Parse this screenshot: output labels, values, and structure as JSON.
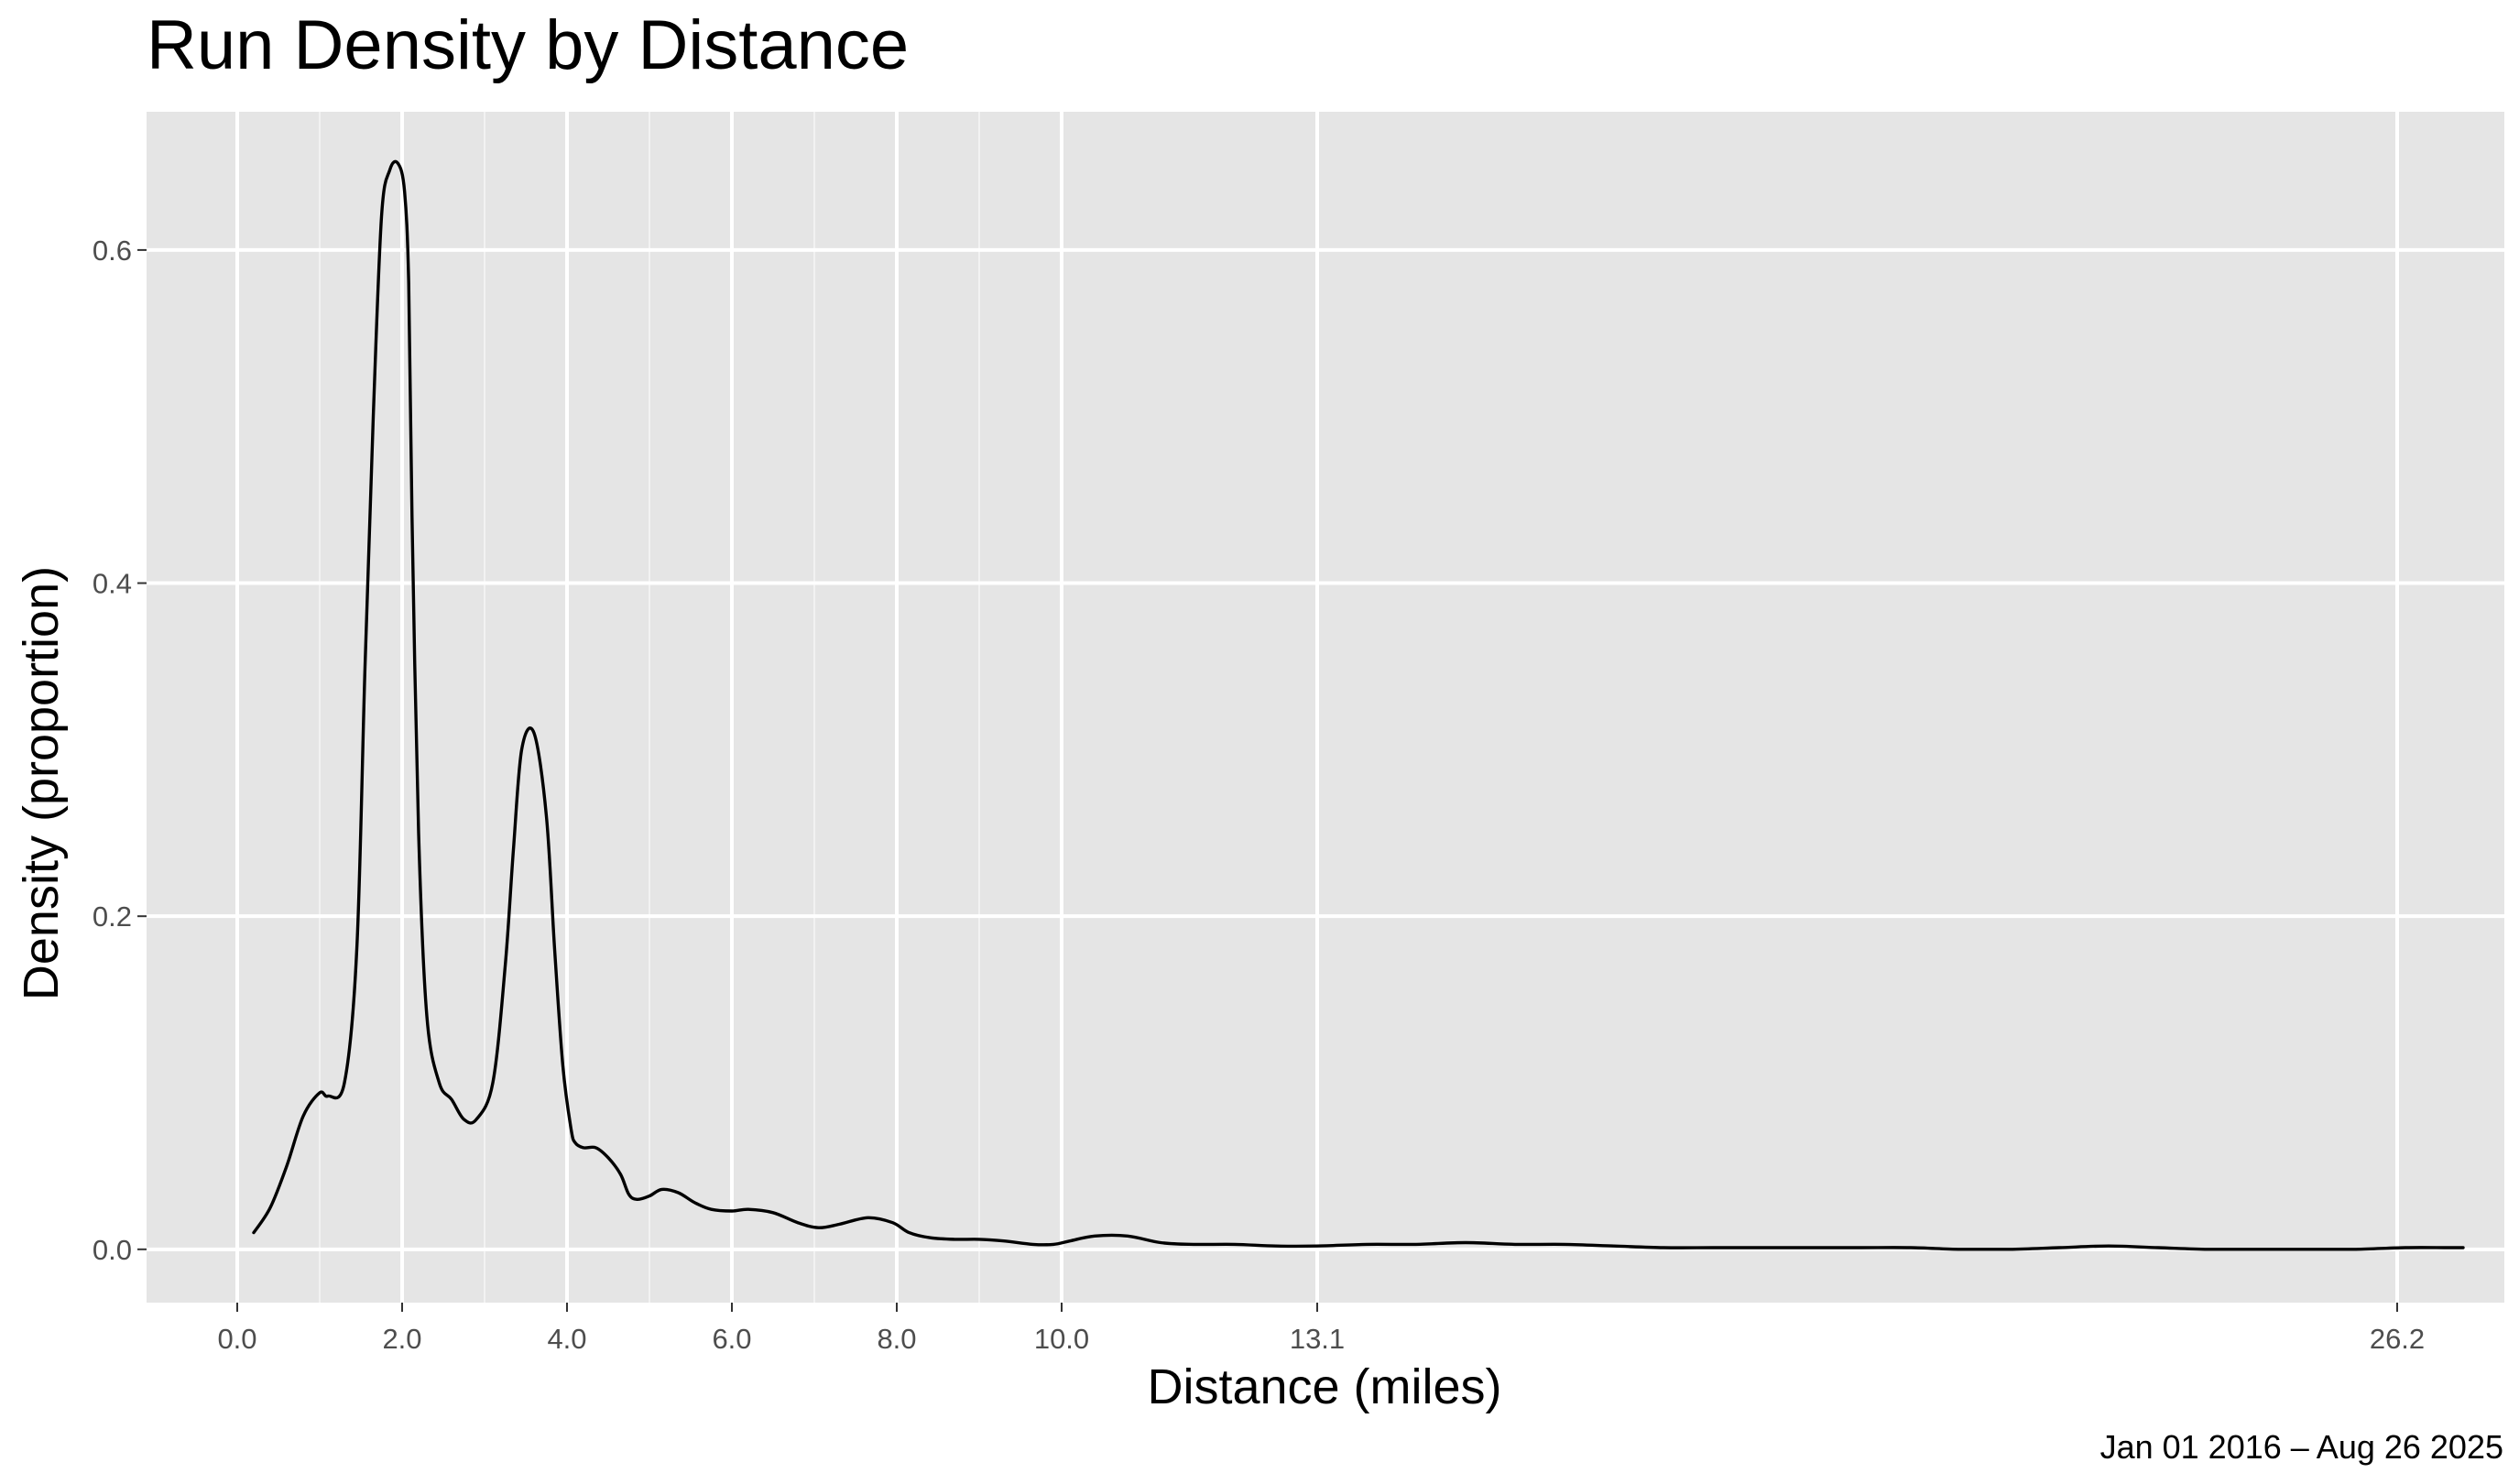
{
  "colors": {
    "panel_background": "#e5e5e5",
    "grid_major": "#ffffff",
    "grid_minor": "#f2f2f2",
    "line": "#000000",
    "tick_text": "#4d4d4d"
  },
  "chart_data": {
    "type": "line",
    "title": "Run Density by Distance",
    "xlabel": "Distance (miles)",
    "ylabel": "Density (proportion)",
    "caption": "Jan 01 2016 – Aug 26 2025",
    "xlim": [
      -1.1,
      27.5
    ],
    "ylim": [
      -0.032,
      0.683
    ],
    "grid": true,
    "x_ticks": [
      0,
      2,
      4,
      6,
      8,
      10,
      13.1,
      26.2
    ],
    "x_tick_labels": [
      "0.0",
      "2.0",
      "4.0",
      "6.0",
      "8.0",
      "10.0",
      "13.1",
      "26.2"
    ],
    "x_minor_grid": [
      1,
      3,
      5,
      7,
      9
    ],
    "y_ticks": [
      0,
      0.2,
      0.4,
      0.6
    ],
    "y_tick_labels": [
      "0.0",
      "0.2",
      "0.4",
      "0.6"
    ],
    "series": [
      {
        "x": [
          0.2,
          0.4,
          0.6,
          0.8,
          1.0,
          1.1,
          1.3,
          1.45,
          1.55,
          1.65,
          1.75,
          1.85,
          1.95,
          2.03,
          2.08,
          2.12,
          2.2,
          2.3,
          2.45,
          2.6,
          2.75,
          2.9,
          3.1,
          3.25,
          3.35,
          3.45,
          3.6,
          3.75,
          3.85,
          3.95,
          4.05,
          4.1,
          4.2,
          4.35,
          4.5,
          4.65,
          4.75,
          4.85,
          5.0,
          5.15,
          5.35,
          5.55,
          5.75,
          6.0,
          6.2,
          6.5,
          6.8,
          7.05,
          7.3,
          7.65,
          7.95,
          8.15,
          8.4,
          8.7,
          9.0,
          9.3,
          9.65,
          9.9,
          10.1,
          10.4,
          10.8,
          11.2,
          11.6,
          12.1,
          12.6,
          13.1,
          13.7,
          14.3,
          14.9,
          15.5,
          16.1,
          16.7,
          17.3,
          17.9,
          18.5,
          19.1,
          19.7,
          20.3,
          20.9,
          21.5,
          22.1,
          22.7,
          23.3,
          23.9,
          24.5,
          25.1,
          25.7,
          26.3,
          26.8,
          27.0
        ],
        "y": [
          0.01,
          0.025,
          0.05,
          0.08,
          0.094,
          0.092,
          0.1,
          0.18,
          0.35,
          0.5,
          0.62,
          0.648,
          0.652,
          0.635,
          0.58,
          0.44,
          0.25,
          0.14,
          0.1,
          0.09,
          0.078,
          0.078,
          0.1,
          0.17,
          0.24,
          0.3,
          0.31,
          0.26,
          0.18,
          0.11,
          0.072,
          0.064,
          0.061,
          0.061,
          0.055,
          0.045,
          0.033,
          0.03,
          0.032,
          0.036,
          0.034,
          0.028,
          0.024,
          0.023,
          0.024,
          0.022,
          0.016,
          0.013,
          0.015,
          0.019,
          0.016,
          0.01,
          0.007,
          0.006,
          0.006,
          0.005,
          0.003,
          0.003,
          0.005,
          0.008,
          0.008,
          0.004,
          0.003,
          0.003,
          0.002,
          0.002,
          0.003,
          0.003,
          0.004,
          0.003,
          0.003,
          0.002,
          0.001,
          0.001,
          0.001,
          0.001,
          0.001,
          0.001,
          0.0,
          0.0,
          0.001,
          0.002,
          0.001,
          0.0,
          0.0,
          0.0,
          0.0,
          0.001,
          0.001,
          0.001
        ]
      }
    ]
  }
}
